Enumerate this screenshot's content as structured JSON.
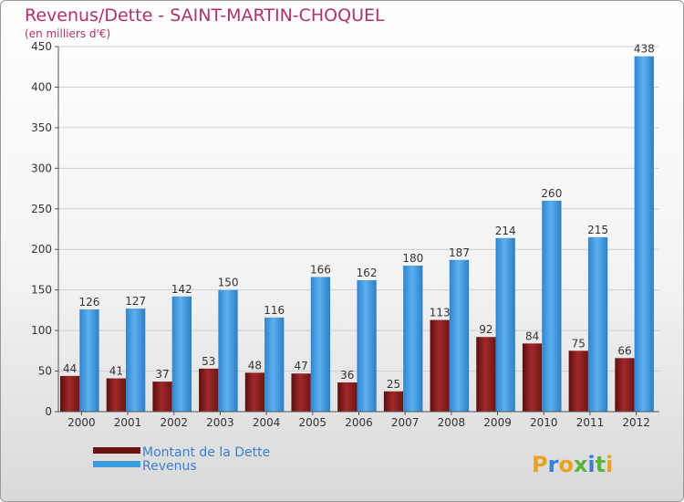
{
  "chart_data": {
    "type": "bar",
    "title": "Revenus/Dette - SAINT-MARTIN-CHOQUEL",
    "subtitle": "(en milliers d'€)",
    "xlabel": "",
    "ylabel": "",
    "ylim": [
      0,
      450
    ],
    "yticks": [
      0,
      50,
      100,
      150,
      200,
      250,
      300,
      350,
      400,
      450
    ],
    "grid": true,
    "legend_position": "bottom-left",
    "categories": [
      "2000",
      "2001",
      "2002",
      "2003",
      "2004",
      "2005",
      "2006",
      "2007",
      "2008",
      "2009",
      "2010",
      "2011",
      "2012"
    ],
    "series": [
      {
        "name": "Montant de la Dette",
        "color": "#8b1a1a",
        "values": [
          44,
          41,
          37,
          53,
          48,
          47,
          36,
          25,
          113,
          92,
          84,
          75,
          66
        ]
      },
      {
        "name": "Revenus",
        "color": "#3d9be0",
        "values": [
          126,
          127,
          142,
          150,
          116,
          166,
          162,
          180,
          187,
          214,
          260,
          215,
          438
        ]
      }
    ]
  },
  "branding": {
    "logo_text": "Proxiti"
  }
}
